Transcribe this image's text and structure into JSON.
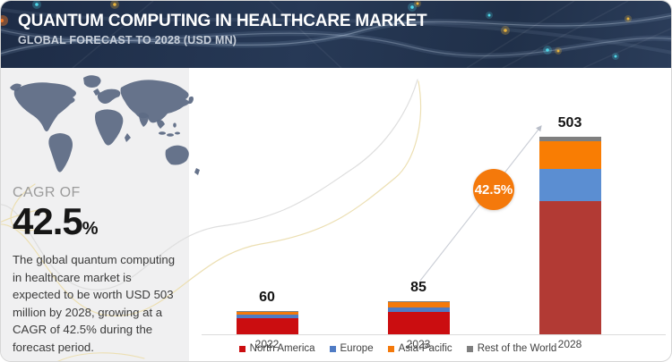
{
  "header": {
    "title": "QUANTUM COMPUTING IN HEALTHCARE MARKET",
    "subtitle": "GLOBAL FORECAST TO 2028 (USD MN)"
  },
  "side_panel": {
    "cagr_label": "CAGR OF",
    "cagr_value": "42.5",
    "cagr_unit": "%",
    "description": "The global quantum computing in healthcare market is expected to be worth USD 503 million by 2028, growing at a CAGR of 42.5% during the forecast period."
  },
  "growth_badge": {
    "label": "42.5%",
    "color": "#f4790b"
  },
  "chart_data": {
    "type": "bar",
    "stacked": true,
    "title": "Quantum Computing in Healthcare Market, Global Forecast to 2028 (USD MN)",
    "categories": [
      "2022",
      "2023",
      "2028"
    ],
    "bar_totals": [
      60,
      85,
      503
    ],
    "value_labels": [
      "60",
      "85",
      "503"
    ],
    "series": [
      {
        "name": "North America",
        "values": [
          40,
          57,
          340
        ],
        "color": "#cb0d10",
        "color_2028": "#b23a34"
      },
      {
        "name": "Europe",
        "values": [
          9,
          11,
          81
        ],
        "color": "#4f7bc4",
        "color_2028": "#5b8ed2"
      },
      {
        "name": "Asia-Pacific",
        "values": [
          9,
          15,
          71
        ],
        "color": "#f4790b",
        "color_2028": "#f97d03"
      },
      {
        "name": "Rest of the World",
        "values": [
          2,
          2,
          11
        ],
        "color": "#7f7f7f",
        "color_2028": "#7f7f7f"
      }
    ],
    "cagr_annotation": "42.5%",
    "legend_position": "bottom",
    "grid": false,
    "y_axis_visible": false,
    "xlabel": "",
    "ylabel": ""
  }
}
